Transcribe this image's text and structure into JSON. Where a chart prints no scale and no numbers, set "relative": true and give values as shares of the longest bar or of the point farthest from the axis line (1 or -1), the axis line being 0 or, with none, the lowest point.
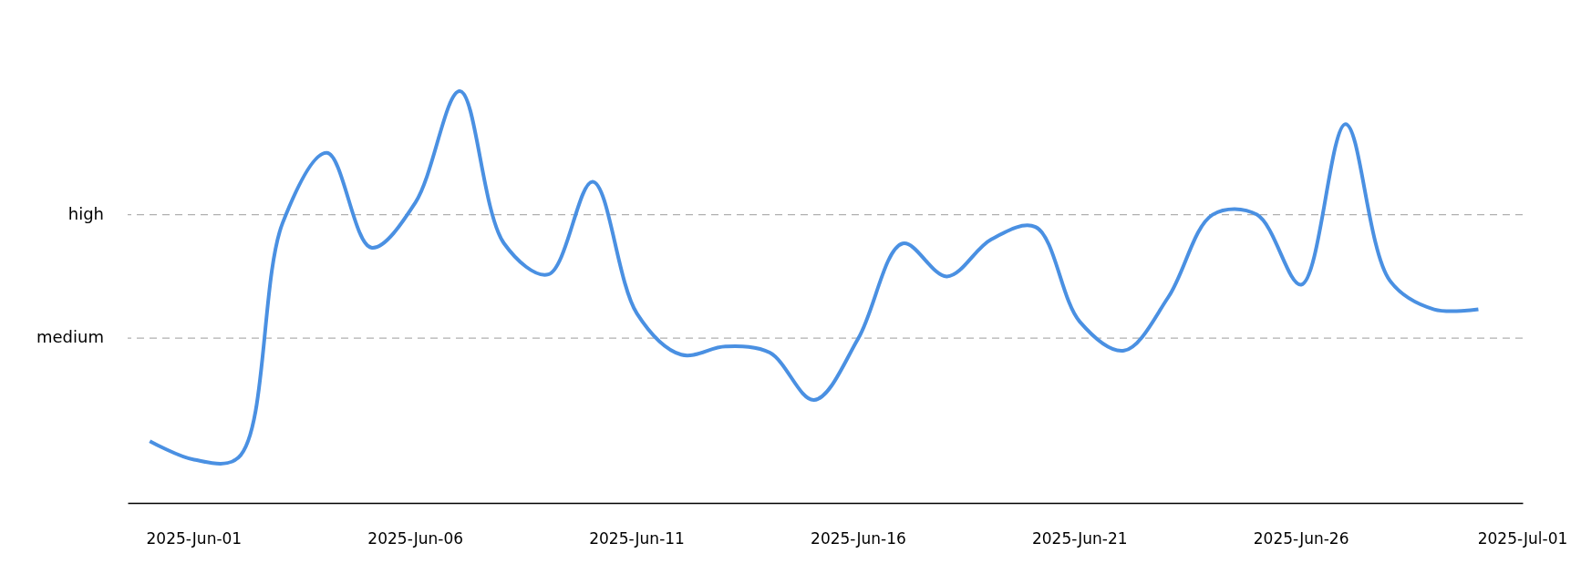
{
  "chart_data": {
    "type": "line",
    "relative": true,
    "x": [
      "2025-05-31",
      "2025-06-01",
      "2025-06-02",
      "2025-06-03",
      "2025-06-04",
      "2025-06-05",
      "2025-06-06",
      "2025-06-07",
      "2025-06-08",
      "2025-06-09",
      "2025-06-10",
      "2025-06-11",
      "2025-06-12",
      "2025-06-13",
      "2025-06-14",
      "2025-06-15",
      "2025-06-16",
      "2025-06-17",
      "2025-06-18",
      "2025-06-19",
      "2025-06-20",
      "2025-06-21",
      "2025-06-22",
      "2025-06-23",
      "2025-06-24",
      "2025-06-25",
      "2025-06-26",
      "2025-06-27",
      "2025-06-28",
      "2025-06-29",
      "2025-06-30"
    ],
    "series": [
      {
        "color": "#4a90e2",
        "values": [
          0.15,
          0.105,
          0.11,
          0.68,
          0.85,
          0.62,
          0.73,
          1.0,
          0.63,
          0.555,
          0.78,
          0.46,
          0.36,
          0.38,
          0.365,
          0.25,
          0.4,
          0.63,
          0.55,
          0.64,
          0.67,
          0.44,
          0.37,
          0.5,
          0.7,
          0.7,
          0.53,
          0.92,
          0.54,
          0.47,
          0.47
        ]
      }
    ],
    "xlim": [
      "2025-05-30T12:00",
      "2025-07-01T00:00"
    ],
    "xticks": [
      {
        "value": "2025-06-01",
        "label": "2025-Jun-01"
      },
      {
        "value": "2025-06-06",
        "label": "2025-Jun-06"
      },
      {
        "value": "2025-06-11",
        "label": "2025-Jun-11"
      },
      {
        "value": "2025-06-16",
        "label": "2025-Jun-16"
      },
      {
        "value": "2025-06-21",
        "label": "2025-Jun-21"
      },
      {
        "value": "2025-06-26",
        "label": "2025-Jun-26"
      },
      {
        "value": "2025-07-01",
        "label": "2025-Jul-01"
      }
    ],
    "ref_lines": [
      {
        "axis": "y",
        "value": 0.7,
        "label": "high",
        "color": "#b0b0b0",
        "line_style": "dashed"
      },
      {
        "axis": "y",
        "value": 0.4,
        "label": "medium",
        "color": "#b0b0b0",
        "line_style": "dashed"
      }
    ],
    "grid": false,
    "marker": "none",
    "line_style": "solid"
  }
}
